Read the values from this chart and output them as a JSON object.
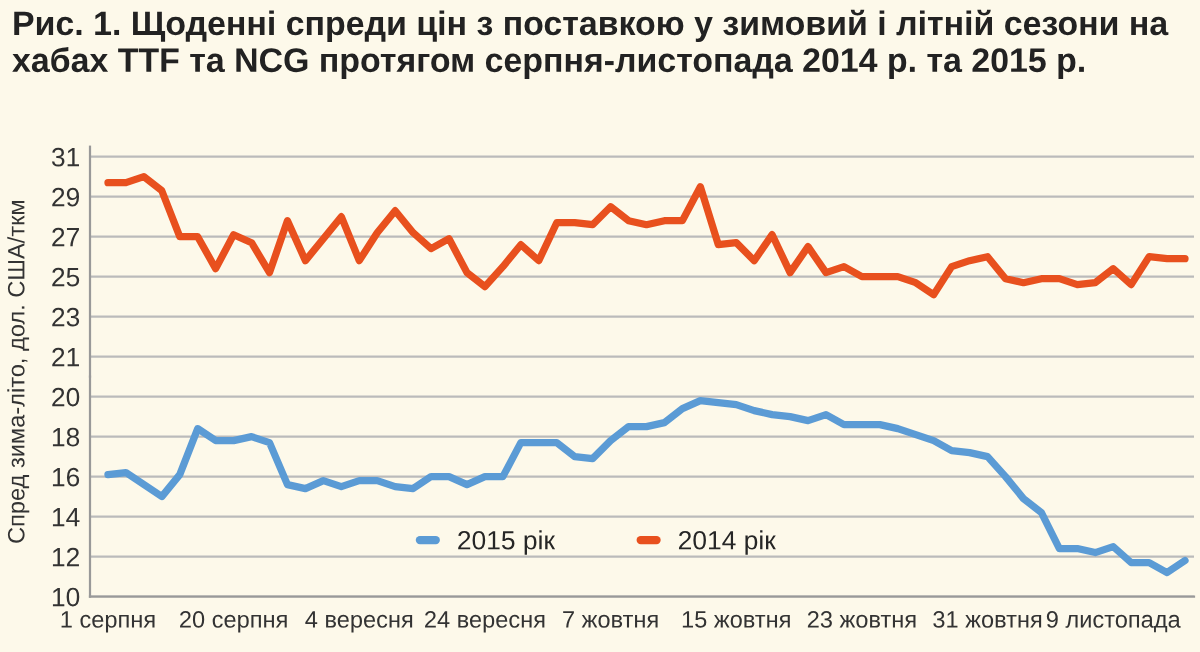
{
  "chart_data": [
    {
      "type": "line",
      "title": "Рис. 1. Щоденні спреди цін з поставкою у зимовий і літній сезони на хабах TTF та NCG протягом серпня-листопада 2014 р. та 2015 р.",
      "ylabel": "Спред зима-літо, дол. США/ткм",
      "categories": [
        null,
        null,
        null,
        null,
        null,
        null,
        null,
        null,
        null,
        null,
        null,
        null,
        null,
        null,
        null,
        null,
        null,
        null,
        null,
        null,
        null,
        null,
        null,
        null,
        null,
        null,
        null,
        null,
        null,
        null,
        null,
        null,
        null,
        null,
        null,
        null,
        null,
        null,
        null,
        null,
        null,
        null,
        null,
        null,
        null,
        null,
        null,
        null,
        null,
        null,
        null,
        null,
        null,
        null,
        null,
        null,
        null,
        null,
        null,
        null,
        null
      ],
      "series": [
        {
          "name": "2014 рік",
          "color": "#e8501e",
          "values": [
            29.7,
            29.7,
            30.0,
            29.3,
            27.0,
            27.0,
            25.4,
            27.1,
            26.7,
            25.2,
            27.8,
            25.8,
            26.9,
            28.0,
            25.8,
            27.2,
            28.3,
            27.2,
            26.4,
            26.9,
            25.2,
            24.5,
            25.5,
            26.6,
            25.8,
            27.7,
            27.7,
            27.6,
            28.5,
            27.8,
            27.6,
            27.8,
            27.8,
            29.5,
            26.6,
            26.7,
            25.8,
            27.1,
            25.2,
            26.5,
            25.2,
            25.5,
            25.0,
            25.0,
            25.0,
            24.7,
            24.1,
            25.5,
            25.8,
            26.0,
            24.9,
            24.7,
            24.9,
            24.9,
            24.6,
            24.7,
            25.4,
            24.6,
            26.0,
            25.9,
            25.9
          ]
        }
      ],
      "ylim": [
        20,
        31.5
      ],
      "yticks": [
        21,
        23,
        25,
        27,
        29,
        31
      ],
      "tick_labels": "y",
      "grid": "y",
      "legend": "bottom",
      "marker": "none",
      "line_style": "solid"
    },
    {
      "type": "line",
      "categories": [
        "1 серпня",
        null,
        null,
        null,
        null,
        null,
        null,
        "20 серпня",
        null,
        null,
        null,
        null,
        null,
        null,
        "4 вересня",
        null,
        null,
        null,
        null,
        null,
        null,
        "24 вересня",
        null,
        null,
        null,
        null,
        null,
        null,
        "7 жовтня",
        null,
        null,
        null,
        null,
        null,
        null,
        "15 жовтня",
        null,
        null,
        null,
        null,
        null,
        null,
        "23 жовтня",
        null,
        null,
        null,
        null,
        null,
        null,
        "31 жовтня",
        null,
        null,
        null,
        null,
        null,
        null,
        "9 листопада",
        null,
        null,
        null,
        null
      ],
      "series": [
        {
          "name": "2015 рік",
          "color": "#5b9bd5",
          "values": [
            16.1,
            16.2,
            15.6,
            15.0,
            16.1,
            18.4,
            17.8,
            17.8,
            18.0,
            17.7,
            15.6,
            15.4,
            15.8,
            15.5,
            15.8,
            15.8,
            15.5,
            15.4,
            16.0,
            16.0,
            15.6,
            16.0,
            16.0,
            17.7,
            17.7,
            17.7,
            17.0,
            16.9,
            17.8,
            18.5,
            18.5,
            18.7,
            19.4,
            19.8,
            19.7,
            19.6,
            19.3,
            19.1,
            19.0,
            18.8,
            19.1,
            18.6,
            18.6,
            18.6,
            18.4,
            18.1,
            17.8,
            17.3,
            17.2,
            17.0,
            16.0,
            14.9,
            14.2,
            12.4,
            12.4,
            12.2,
            12.5,
            11.7,
            11.7,
            11.2,
            11.8
          ]
        }
      ],
      "ylim": [
        10,
        21
      ],
      "yticks": [
        10,
        12,
        14,
        16,
        18,
        20
      ],
      "grid": "y",
      "legend": "bottom",
      "marker": "none",
      "line_style": "solid"
    }
  ]
}
